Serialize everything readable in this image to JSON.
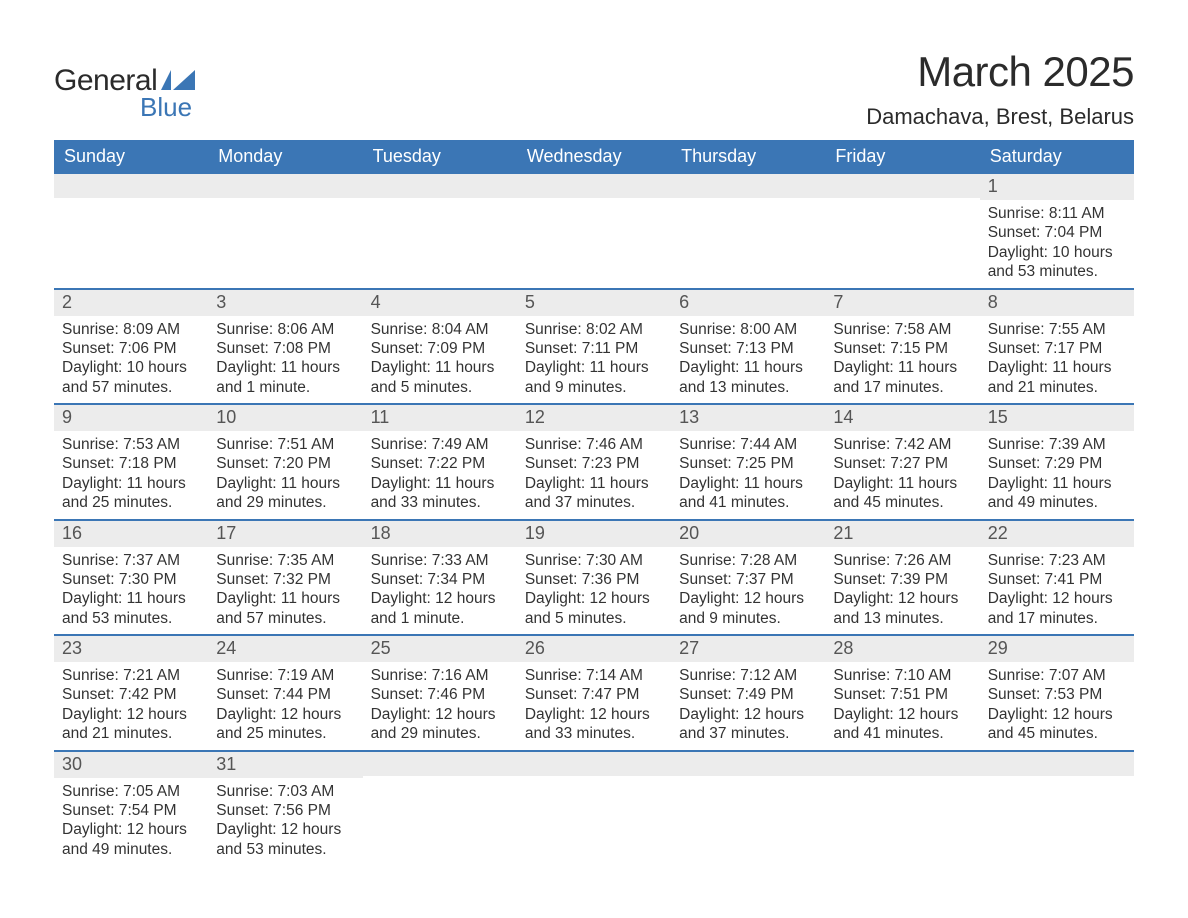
{
  "branding": {
    "word1": "General",
    "word2": "Blue",
    "logo_colors": {
      "text_dark": "#2b2b2b",
      "accent": "#3b76b5"
    }
  },
  "header": {
    "title": "March 2025",
    "location": "Damachava, Brest, Belarus",
    "title_fontsize": 42,
    "location_fontsize": 22
  },
  "calendar": {
    "type": "calendar-table",
    "header_bg": "#3b76b5",
    "header_text_color": "#ffffff",
    "daynum_band_bg": "#ececec",
    "row_divider_color": "#3b76b5",
    "body_text_color": "#333333",
    "background_color": "#ffffff",
    "columns": [
      "Sunday",
      "Monday",
      "Tuesday",
      "Wednesday",
      "Thursday",
      "Friday",
      "Saturday"
    ],
    "weeks": [
      [
        {
          "day": "",
          "sunrise": "",
          "sunset": "",
          "daylight1": "",
          "daylight2": ""
        },
        {
          "day": "",
          "sunrise": "",
          "sunset": "",
          "daylight1": "",
          "daylight2": ""
        },
        {
          "day": "",
          "sunrise": "",
          "sunset": "",
          "daylight1": "",
          "daylight2": ""
        },
        {
          "day": "",
          "sunrise": "",
          "sunset": "",
          "daylight1": "",
          "daylight2": ""
        },
        {
          "day": "",
          "sunrise": "",
          "sunset": "",
          "daylight1": "",
          "daylight2": ""
        },
        {
          "day": "",
          "sunrise": "",
          "sunset": "",
          "daylight1": "",
          "daylight2": ""
        },
        {
          "day": "1",
          "sunrise": "Sunrise: 8:11 AM",
          "sunset": "Sunset: 7:04 PM",
          "daylight1": "Daylight: 10 hours",
          "daylight2": "and 53 minutes."
        }
      ],
      [
        {
          "day": "2",
          "sunrise": "Sunrise: 8:09 AM",
          "sunset": "Sunset: 7:06 PM",
          "daylight1": "Daylight: 10 hours",
          "daylight2": "and 57 minutes."
        },
        {
          "day": "3",
          "sunrise": "Sunrise: 8:06 AM",
          "sunset": "Sunset: 7:08 PM",
          "daylight1": "Daylight: 11 hours",
          "daylight2": "and 1 minute."
        },
        {
          "day": "4",
          "sunrise": "Sunrise: 8:04 AM",
          "sunset": "Sunset: 7:09 PM",
          "daylight1": "Daylight: 11 hours",
          "daylight2": "and 5 minutes."
        },
        {
          "day": "5",
          "sunrise": "Sunrise: 8:02 AM",
          "sunset": "Sunset: 7:11 PM",
          "daylight1": "Daylight: 11 hours",
          "daylight2": "and 9 minutes."
        },
        {
          "day": "6",
          "sunrise": "Sunrise: 8:00 AM",
          "sunset": "Sunset: 7:13 PM",
          "daylight1": "Daylight: 11 hours",
          "daylight2": "and 13 minutes."
        },
        {
          "day": "7",
          "sunrise": "Sunrise: 7:58 AM",
          "sunset": "Sunset: 7:15 PM",
          "daylight1": "Daylight: 11 hours",
          "daylight2": "and 17 minutes."
        },
        {
          "day": "8",
          "sunrise": "Sunrise: 7:55 AM",
          "sunset": "Sunset: 7:17 PM",
          "daylight1": "Daylight: 11 hours",
          "daylight2": "and 21 minutes."
        }
      ],
      [
        {
          "day": "9",
          "sunrise": "Sunrise: 7:53 AM",
          "sunset": "Sunset: 7:18 PM",
          "daylight1": "Daylight: 11 hours",
          "daylight2": "and 25 minutes."
        },
        {
          "day": "10",
          "sunrise": "Sunrise: 7:51 AM",
          "sunset": "Sunset: 7:20 PM",
          "daylight1": "Daylight: 11 hours",
          "daylight2": "and 29 minutes."
        },
        {
          "day": "11",
          "sunrise": "Sunrise: 7:49 AM",
          "sunset": "Sunset: 7:22 PM",
          "daylight1": "Daylight: 11 hours",
          "daylight2": "and 33 minutes."
        },
        {
          "day": "12",
          "sunrise": "Sunrise: 7:46 AM",
          "sunset": "Sunset: 7:23 PM",
          "daylight1": "Daylight: 11 hours",
          "daylight2": "and 37 minutes."
        },
        {
          "day": "13",
          "sunrise": "Sunrise: 7:44 AM",
          "sunset": "Sunset: 7:25 PM",
          "daylight1": "Daylight: 11 hours",
          "daylight2": "and 41 minutes."
        },
        {
          "day": "14",
          "sunrise": "Sunrise: 7:42 AM",
          "sunset": "Sunset: 7:27 PM",
          "daylight1": "Daylight: 11 hours",
          "daylight2": "and 45 minutes."
        },
        {
          "day": "15",
          "sunrise": "Sunrise: 7:39 AM",
          "sunset": "Sunset: 7:29 PM",
          "daylight1": "Daylight: 11 hours",
          "daylight2": "and 49 minutes."
        }
      ],
      [
        {
          "day": "16",
          "sunrise": "Sunrise: 7:37 AM",
          "sunset": "Sunset: 7:30 PM",
          "daylight1": "Daylight: 11 hours",
          "daylight2": "and 53 minutes."
        },
        {
          "day": "17",
          "sunrise": "Sunrise: 7:35 AM",
          "sunset": "Sunset: 7:32 PM",
          "daylight1": "Daylight: 11 hours",
          "daylight2": "and 57 minutes."
        },
        {
          "day": "18",
          "sunrise": "Sunrise: 7:33 AM",
          "sunset": "Sunset: 7:34 PM",
          "daylight1": "Daylight: 12 hours",
          "daylight2": "and 1 minute."
        },
        {
          "day": "19",
          "sunrise": "Sunrise: 7:30 AM",
          "sunset": "Sunset: 7:36 PM",
          "daylight1": "Daylight: 12 hours",
          "daylight2": "and 5 minutes."
        },
        {
          "day": "20",
          "sunrise": "Sunrise: 7:28 AM",
          "sunset": "Sunset: 7:37 PM",
          "daylight1": "Daylight: 12 hours",
          "daylight2": "and 9 minutes."
        },
        {
          "day": "21",
          "sunrise": "Sunrise: 7:26 AM",
          "sunset": "Sunset: 7:39 PM",
          "daylight1": "Daylight: 12 hours",
          "daylight2": "and 13 minutes."
        },
        {
          "day": "22",
          "sunrise": "Sunrise: 7:23 AM",
          "sunset": "Sunset: 7:41 PM",
          "daylight1": "Daylight: 12 hours",
          "daylight2": "and 17 minutes."
        }
      ],
      [
        {
          "day": "23",
          "sunrise": "Sunrise: 7:21 AM",
          "sunset": "Sunset: 7:42 PM",
          "daylight1": "Daylight: 12 hours",
          "daylight2": "and 21 minutes."
        },
        {
          "day": "24",
          "sunrise": "Sunrise: 7:19 AM",
          "sunset": "Sunset: 7:44 PM",
          "daylight1": "Daylight: 12 hours",
          "daylight2": "and 25 minutes."
        },
        {
          "day": "25",
          "sunrise": "Sunrise: 7:16 AM",
          "sunset": "Sunset: 7:46 PM",
          "daylight1": "Daylight: 12 hours",
          "daylight2": "and 29 minutes."
        },
        {
          "day": "26",
          "sunrise": "Sunrise: 7:14 AM",
          "sunset": "Sunset: 7:47 PM",
          "daylight1": "Daylight: 12 hours",
          "daylight2": "and 33 minutes."
        },
        {
          "day": "27",
          "sunrise": "Sunrise: 7:12 AM",
          "sunset": "Sunset: 7:49 PM",
          "daylight1": "Daylight: 12 hours",
          "daylight2": "and 37 minutes."
        },
        {
          "day": "28",
          "sunrise": "Sunrise: 7:10 AM",
          "sunset": "Sunset: 7:51 PM",
          "daylight1": "Daylight: 12 hours",
          "daylight2": "and 41 minutes."
        },
        {
          "day": "29",
          "sunrise": "Sunrise: 7:07 AM",
          "sunset": "Sunset: 7:53 PM",
          "daylight1": "Daylight: 12 hours",
          "daylight2": "and 45 minutes."
        }
      ],
      [
        {
          "day": "30",
          "sunrise": "Sunrise: 7:05 AM",
          "sunset": "Sunset: 7:54 PM",
          "daylight1": "Daylight: 12 hours",
          "daylight2": "and 49 minutes."
        },
        {
          "day": "31",
          "sunrise": "Sunrise: 7:03 AM",
          "sunset": "Sunset: 7:56 PM",
          "daylight1": "Daylight: 12 hours",
          "daylight2": "and 53 minutes."
        },
        {
          "day": "",
          "sunrise": "",
          "sunset": "",
          "daylight1": "",
          "daylight2": ""
        },
        {
          "day": "",
          "sunrise": "",
          "sunset": "",
          "daylight1": "",
          "daylight2": ""
        },
        {
          "day": "",
          "sunrise": "",
          "sunset": "",
          "daylight1": "",
          "daylight2": ""
        },
        {
          "day": "",
          "sunrise": "",
          "sunset": "",
          "daylight1": "",
          "daylight2": ""
        },
        {
          "day": "",
          "sunrise": "",
          "sunset": "",
          "daylight1": "",
          "daylight2": ""
        }
      ]
    ]
  }
}
